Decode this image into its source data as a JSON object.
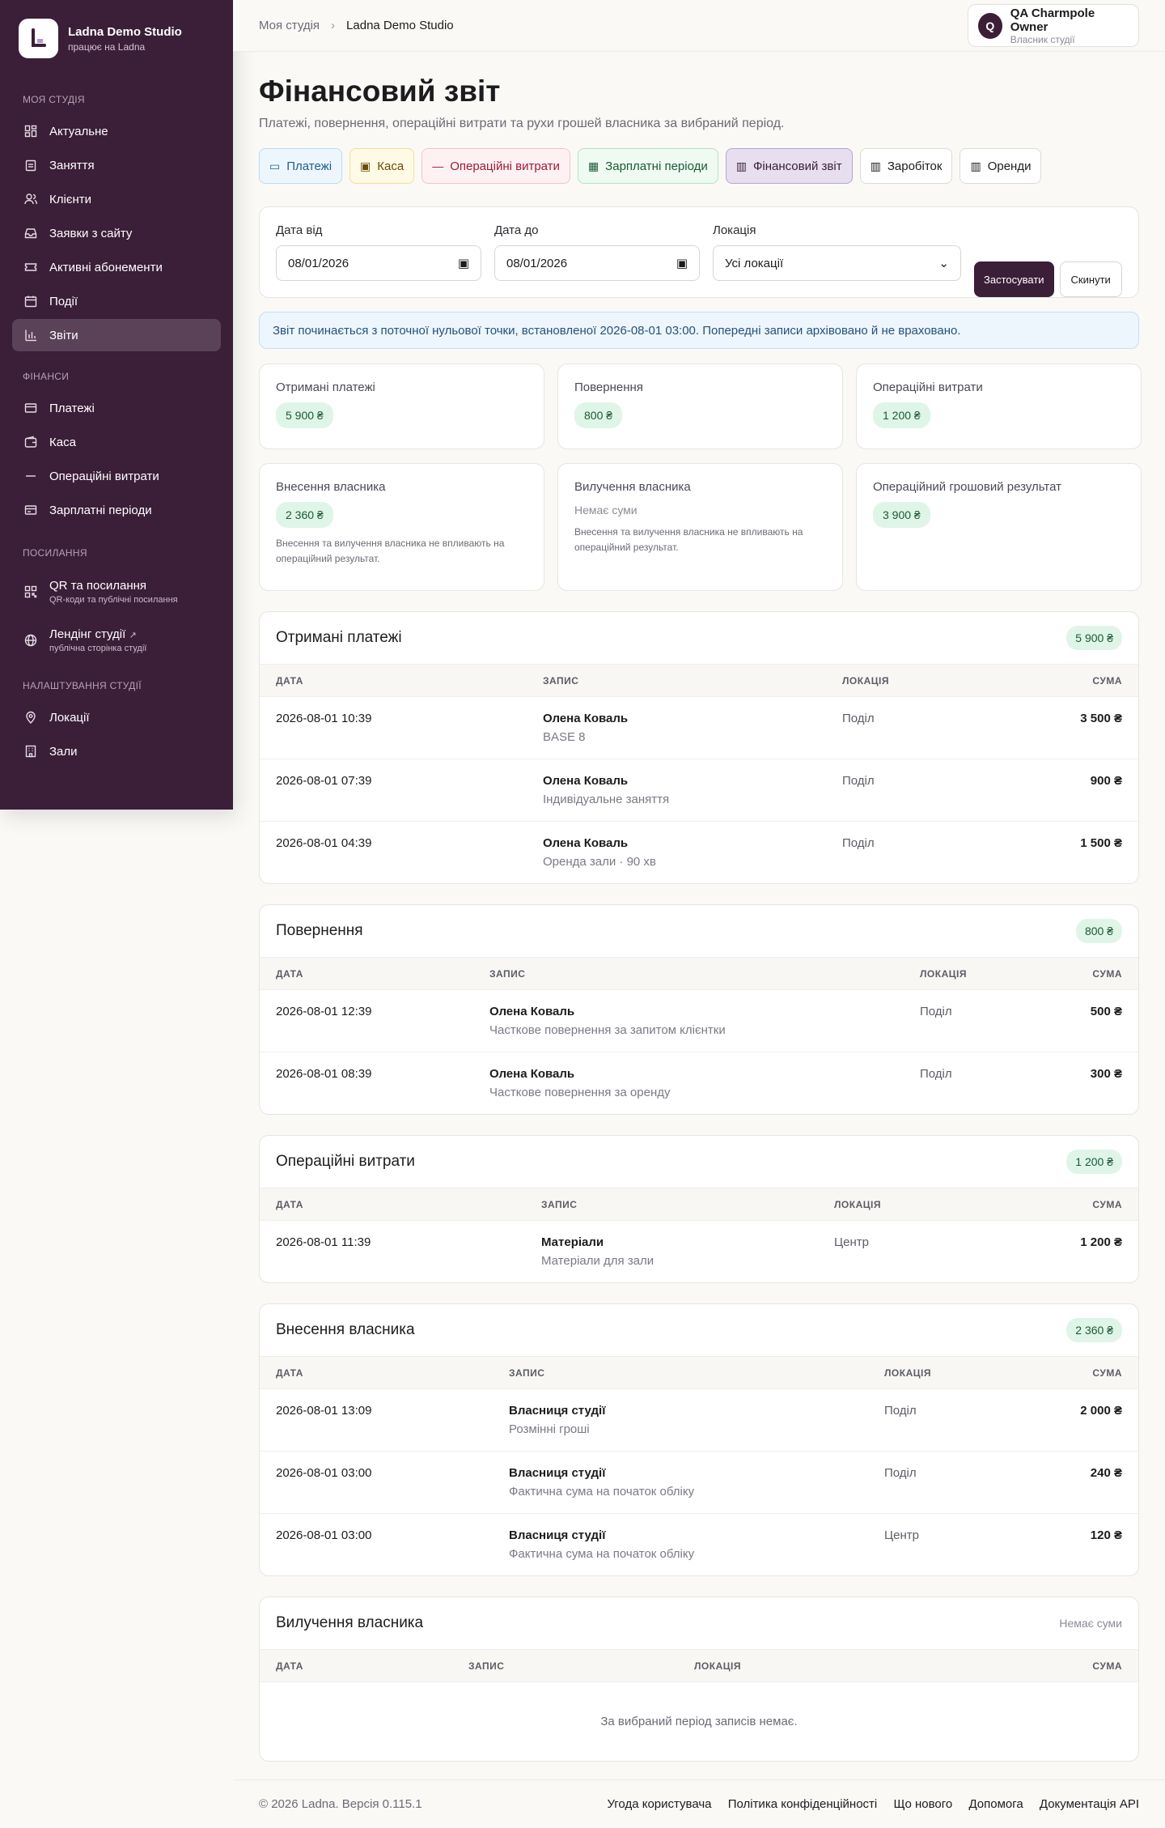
{
  "brand": {
    "title": "Ladna Demo Studio",
    "subtitle": "працює на Ladna"
  },
  "sidebar": {
    "studio_section": "Моя студія",
    "studio_items": [
      {
        "label": "Актуальне",
        "icon": "dashboard-icon"
      },
      {
        "label": "Заняття",
        "icon": "clipboard-icon"
      },
      {
        "label": "Клієнти",
        "icon": "users-icon"
      },
      {
        "label": "Заявки з сайту",
        "icon": "inbox-icon"
      },
      {
        "label": "Активні абонементи",
        "icon": "ticket-icon"
      },
      {
        "label": "Події",
        "icon": "calendar-icon"
      },
      {
        "label": "Звіти",
        "icon": "chart-icon"
      }
    ],
    "finance_section": "Фінанси",
    "finance_items": [
      {
        "label": "Платежі",
        "icon": "card-icon"
      },
      {
        "label": "Каса",
        "icon": "wallet-icon"
      },
      {
        "label": "Операційні витрати",
        "icon": "minus-icon"
      },
      {
        "label": "Зарплатні періоди",
        "icon": "payroll-icon"
      }
    ],
    "links_section": "Посилання",
    "qr": {
      "label": "QR та посилання",
      "sub": "QR-коди та публічні посилання"
    },
    "landing": {
      "label": "Лендінг студії",
      "sub": "публічна сторінка студії"
    },
    "settings_section": "Налаштування студії",
    "settings_items": [
      {
        "label": "Локації",
        "icon": "pin-icon"
      },
      {
        "label": "Зали",
        "icon": "building-icon"
      }
    ]
  },
  "breadcrumb": {
    "parent": "Моя студія",
    "current": "Ladna Demo Studio"
  },
  "user": {
    "initial": "Q",
    "name": "QA Charmpole Owner",
    "role": "Власник студії"
  },
  "page": {
    "title": "Фінансовий звіт",
    "subtitle": "Платежі, повернення, операційні витрати та рухи грошей власника за вибраний період."
  },
  "tabs": [
    {
      "label": "Платежі",
      "icon": "▭"
    },
    {
      "label": "Каса",
      "icon": "▣"
    },
    {
      "label": "Операційні витрати",
      "icon": "—"
    },
    {
      "label": "Зарплатні періоди",
      "icon": "▦"
    },
    {
      "label": "Фінансовий звіт",
      "icon": "▥"
    },
    {
      "label": "Заробіток",
      "icon": "▥"
    },
    {
      "label": "Оренди",
      "icon": "▥"
    }
  ],
  "filters": {
    "date_from_label": "Дата від",
    "date_from": "08/01/2026",
    "date_to_label": "Дата до",
    "date_to": "08/01/2026",
    "location_label": "Локація",
    "location": "Усі локації",
    "apply": "Застосувати",
    "reset": "Скинути"
  },
  "notice": "Звіт починається з поточної нульової точки, встановленої 2026-08-01 03:00. Попередні записи архівовано й не враховано.",
  "summary": {
    "received": {
      "title": "Отримані платежі",
      "value": "5 900 ₴"
    },
    "refunds": {
      "title": "Повернення",
      "value": "800 ₴"
    },
    "opex": {
      "title": "Операційні витрати",
      "value": "1 200 ₴"
    },
    "owner_in": {
      "title": "Внесення власника",
      "value": "2 360 ₴",
      "note": "Внесення та вилучення власника не впливають на операційний результат."
    },
    "owner_out": {
      "title": "Вилучення власника",
      "empty": "Немає суми",
      "note": "Внесення та вилучення власника не впливають на операційний результат."
    },
    "result": {
      "title": "Операційний грошовий результат",
      "value": "3 900 ₴"
    }
  },
  "columns": {
    "date": "Дата",
    "record": "Запис",
    "location": "Локація",
    "amount": "Сума"
  },
  "received_table": {
    "title": "Отримані платежі",
    "total": "5 900 ₴",
    "rows": [
      {
        "date": "2026-08-01 10:39",
        "name": "Олена Коваль",
        "sub": "BASE 8",
        "location": "Поділ",
        "amount": "3 500 ₴"
      },
      {
        "date": "2026-08-01 07:39",
        "name": "Олена Коваль",
        "sub": "Індивідуальне заняття",
        "location": "Поділ",
        "amount": "900 ₴"
      },
      {
        "date": "2026-08-01 04:39",
        "name": "Олена Коваль",
        "sub": "Оренда зали · 90 хв",
        "location": "Поділ",
        "amount": "1 500 ₴"
      }
    ]
  },
  "refunds_table": {
    "title": "Повернення",
    "total": "800 ₴",
    "rows": [
      {
        "date": "2026-08-01 12:39",
        "name": "Олена Коваль",
        "sub": "Часткове повернення за запитом клієнтки",
        "location": "Поділ",
        "amount": "500 ₴"
      },
      {
        "date": "2026-08-01 08:39",
        "name": "Олена Коваль",
        "sub": "Часткове повернення за оренду",
        "location": "Поділ",
        "amount": "300 ₴"
      }
    ]
  },
  "opex_table": {
    "title": "Операційні витрати",
    "total": "1 200 ₴",
    "rows": [
      {
        "date": "2026-08-01 11:39",
        "name": "Матеріали",
        "sub": "Матеріали для зали",
        "location": "Центр",
        "amount": "1 200 ₴"
      }
    ]
  },
  "owner_in_table": {
    "title": "Внесення власника",
    "total": "2 360 ₴",
    "rows": [
      {
        "date": "2026-08-01 13:09",
        "name": "Власниця студії",
        "sub": "Розмінні гроші",
        "location": "Поділ",
        "amount": "2 000 ₴"
      },
      {
        "date": "2026-08-01 03:00",
        "name": "Власниця студії",
        "sub": "Фактична сума на початок обліку",
        "location": "Поділ",
        "amount": "240 ₴"
      },
      {
        "date": "2026-08-01 03:00",
        "name": "Власниця студії",
        "sub": "Фактична сума на початок обліку",
        "location": "Центр",
        "amount": "120 ₴"
      }
    ]
  },
  "owner_out_table": {
    "title": "Вилучення власника",
    "total": "Немає суми",
    "empty": "За вибраний період записів немає."
  },
  "footer": {
    "copy": "© 2026 Ladna. Версія 0.115.1",
    "links": [
      "Угода користувача",
      "Політика конфіденційності",
      "Що нового",
      "Допомога",
      "Документація API"
    ]
  }
}
